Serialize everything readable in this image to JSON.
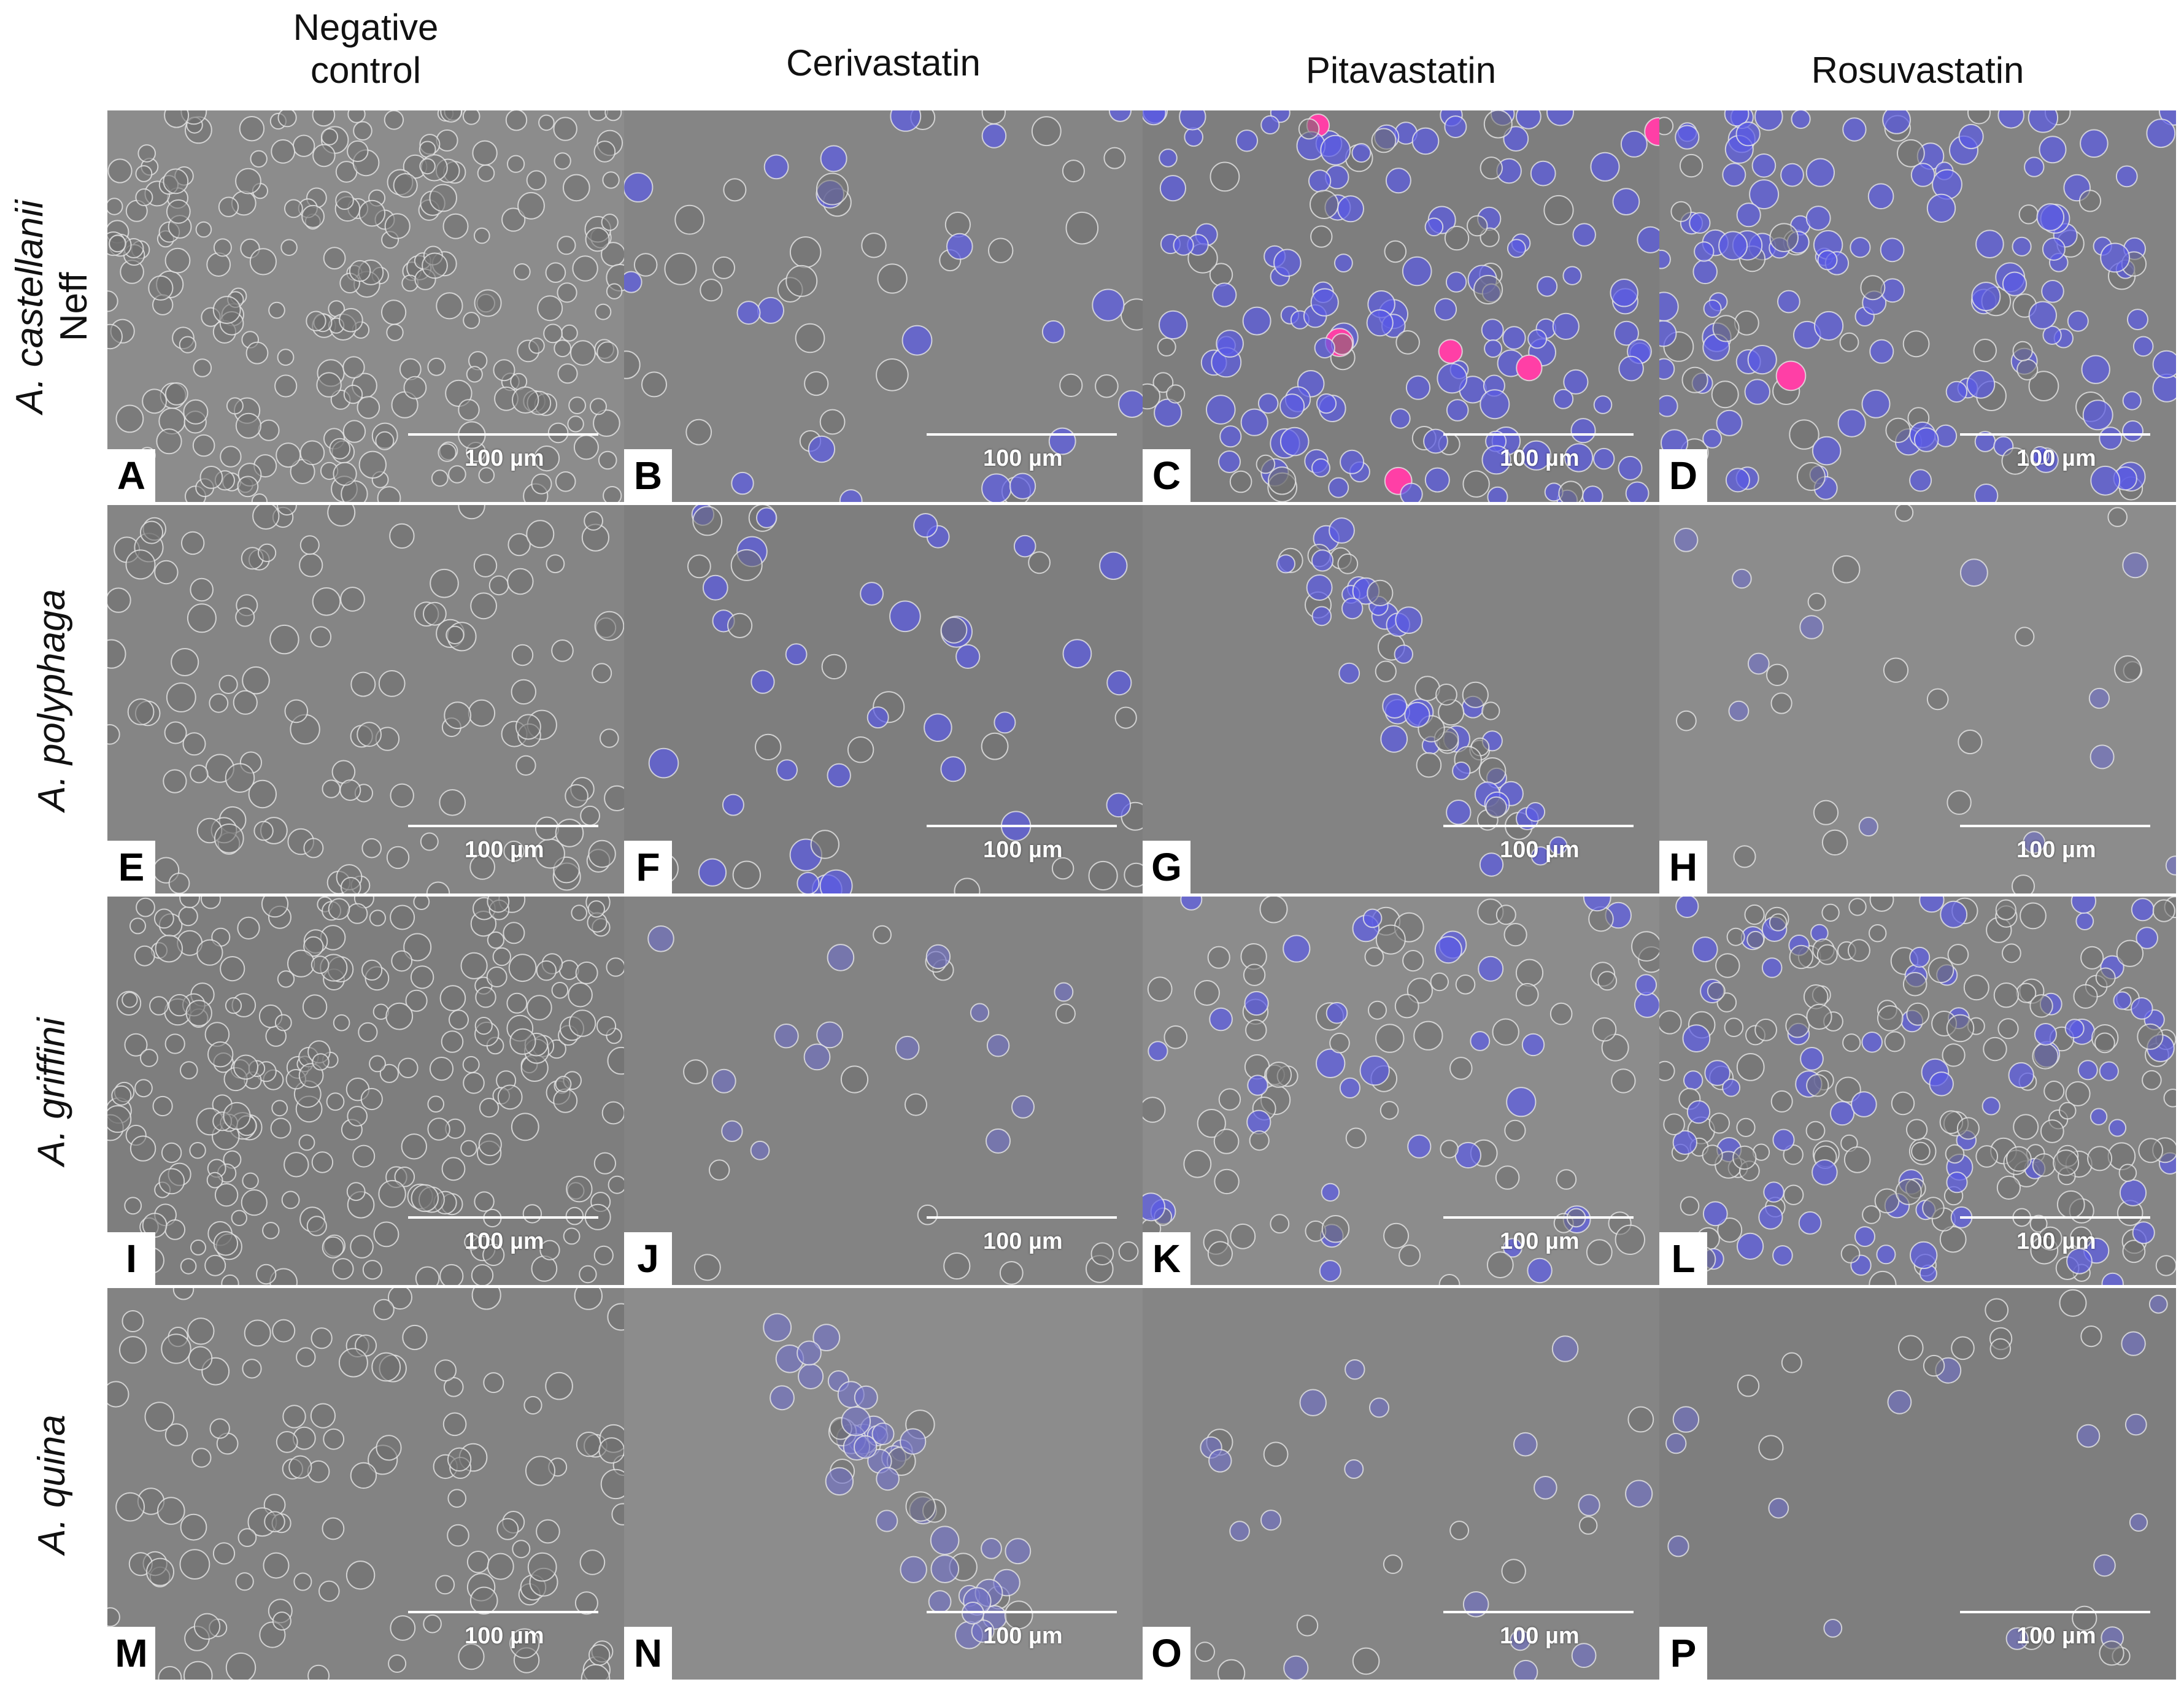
{
  "columns": [
    {
      "label": "Negative\ncontrol"
    },
    {
      "label": "Cerivastatin"
    },
    {
      "label": "Pitavastatin"
    },
    {
      "label": "Rosuvastatin"
    }
  ],
  "rows": [
    {
      "genus": "A. castellanii",
      "strain": "Neff"
    },
    {
      "genus": "A. polyphaga",
      "strain": ""
    },
    {
      "genus": "A. griffini",
      "strain": ""
    },
    {
      "genus": "A. quina",
      "strain": ""
    }
  ],
  "panels": [
    {
      "label": "A",
      "scale_text": "100 µm"
    },
    {
      "label": "B",
      "scale_text": "100 µm"
    },
    {
      "label": "C",
      "scale_text": "100 µm"
    },
    {
      "label": "D",
      "scale_text": "100 µm"
    },
    {
      "label": "E",
      "scale_text": "100 µm"
    },
    {
      "label": "F",
      "scale_text": "100 µm"
    },
    {
      "label": "G",
      "scale_text": "100 µm"
    },
    {
      "label": "H",
      "scale_text": "100 µm"
    },
    {
      "label": "I",
      "scale_text": "100 µm"
    },
    {
      "label": "J",
      "scale_text": "100 µm"
    },
    {
      "label": "K",
      "scale_text": "100 µm"
    },
    {
      "label": "L",
      "scale_text": "100 µm"
    },
    {
      "label": "M",
      "scale_text": "100 µm"
    },
    {
      "label": "N",
      "scale_text": "100 µm"
    },
    {
      "label": "O",
      "scale_text": "100 µm"
    },
    {
      "label": "P",
      "scale_text": "100 µm"
    }
  ],
  "colors": {
    "background_gray": "#8a8a8a",
    "stain_blue": "#3a3aff",
    "stain_pink": "#ff3fa6",
    "scale_bar": "#ffffff"
  }
}
